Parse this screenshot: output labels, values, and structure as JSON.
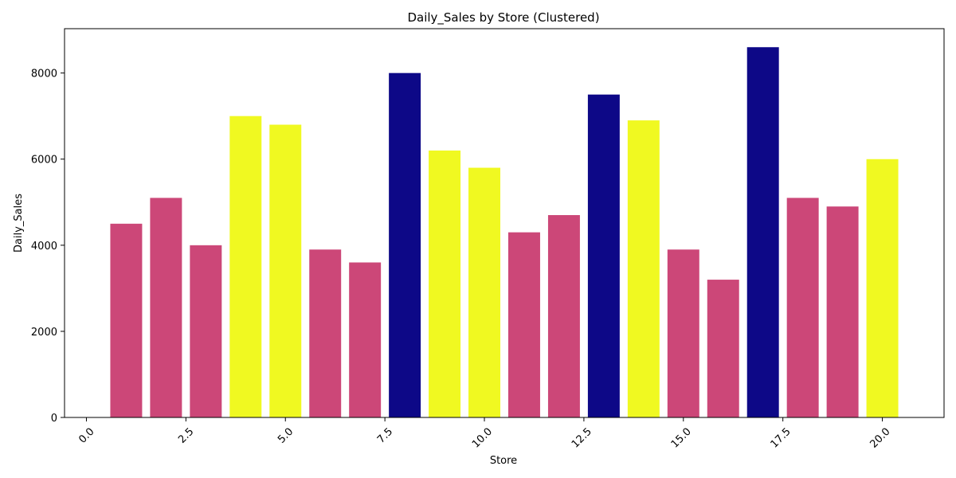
{
  "chart_data": {
    "type": "bar",
    "title": "Daily_Sales by Store (Clustered)",
    "xlabel": "Store",
    "ylabel": "Daily_Sales",
    "xlim": [
      -0.55,
      21.55
    ],
    "ylim": [
      0,
      9030
    ],
    "xticks": [
      0.0,
      2.5,
      5.0,
      7.5,
      10.0,
      12.5,
      15.0,
      17.5,
      20.0
    ],
    "xtick_labels": [
      "0.0",
      "2.5",
      "5.0",
      "7.5",
      "10.0",
      "12.5",
      "15.0",
      "17.5",
      "20.0"
    ],
    "yticks": [
      0,
      2000,
      4000,
      6000,
      8000
    ],
    "ytick_labels": [
      "0",
      "2000",
      "4000",
      "6000",
      "8000"
    ],
    "grid": false,
    "bar_width": 0.8,
    "cluster_colors": {
      "low": "#cc4778",
      "mid": "#f0f921",
      "high": "#0d0887"
    },
    "x": [
      1,
      2,
      3,
      4,
      5,
      6,
      7,
      8,
      9,
      10,
      11,
      12,
      13,
      14,
      15,
      16,
      17,
      18,
      19,
      20
    ],
    "values": [
      4500,
      5100,
      4000,
      7000,
      6800,
      3900,
      3600,
      8000,
      6200,
      5800,
      4300,
      4700,
      7500,
      6900,
      3900,
      3200,
      8600,
      5100,
      4900,
      6000
    ],
    "clusters": [
      "low",
      "low",
      "low",
      "mid",
      "mid",
      "low",
      "low",
      "high",
      "mid",
      "mid",
      "low",
      "low",
      "high",
      "mid",
      "low",
      "low",
      "high",
      "low",
      "low",
      "mid"
    ]
  }
}
